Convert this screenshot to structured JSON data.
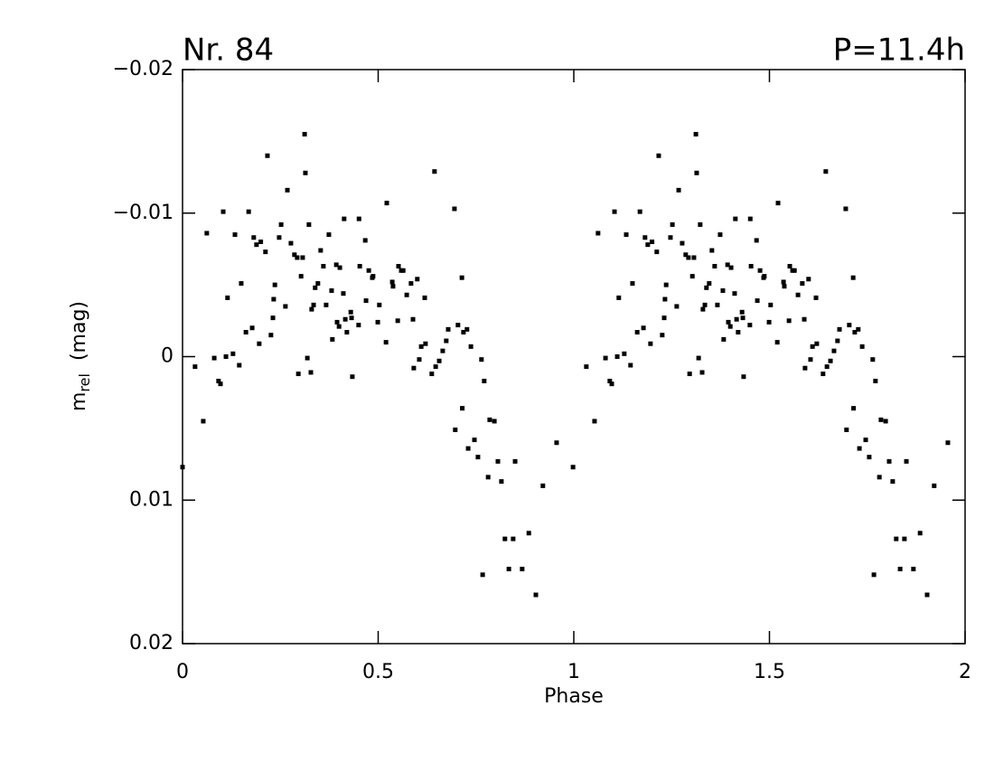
{
  "chart_data": {
    "type": "scatter",
    "title_left": "Nr.  84",
    "title_right": "P=11.4h",
    "xlabel": "Phase",
    "ylabel": {
      "text": "m",
      "subscript": "rel",
      "suffix": "(mag)"
    },
    "xlim": [
      0,
      2
    ],
    "xticks": [
      0,
      0.5,
      1,
      1.5,
      2
    ],
    "ylim": [
      -0.02,
      0.02
    ],
    "y_inverted": true,
    "yticks": [
      {
        "value": -0.02,
        "label": "−0.02"
      },
      {
        "value": -0.01,
        "label": "−0.01"
      },
      0,
      0.01,
      0.02
    ],
    "series": [
      {
        "name": "Nr. 84",
        "color": "#000000",
        "x": [
          0.0,
          0.032,
          0.053,
          0.062,
          0.081,
          0.092,
          0.097,
          0.104,
          0.111,
          0.115,
          0.129,
          0.134,
          0.145,
          0.15,
          0.162,
          0.169,
          0.178,
          0.182,
          0.189,
          0.196,
          0.2,
          0.212,
          0.217,
          0.226,
          0.231,
          0.233,
          0.236,
          0.247,
          0.252,
          0.263,
          0.268,
          0.277,
          0.286,
          0.293,
          0.296,
          0.303,
          0.307,
          0.312,
          0.314,
          0.319,
          0.323,
          0.328,
          0.33,
          0.335,
          0.339,
          0.346,
          0.353,
          0.36,
          0.367,
          0.374,
          0.381,
          0.383,
          0.393,
          0.395,
          0.4,
          0.402,
          0.411,
          0.413,
          0.416,
          0.42,
          0.43,
          0.432,
          0.434,
          0.45,
          0.451,
          0.453,
          0.467,
          0.469,
          0.476,
          0.485,
          0.487,
          0.499,
          0.503,
          0.52,
          0.522,
          0.536,
          0.538,
          0.55,
          0.552,
          0.559,
          0.564,
          0.573,
          0.584,
          0.589,
          0.591,
          0.6,
          0.605,
          0.61,
          0.619,
          0.621,
          0.637,
          0.644,
          0.647,
          0.656,
          0.665,
          0.674,
          0.679,
          0.695,
          0.697,
          0.704,
          0.714,
          0.715,
          0.718,
          0.727,
          0.73,
          0.737,
          0.746,
          0.755,
          0.764,
          0.767,
          0.771,
          0.781,
          0.785,
          0.797,
          0.806,
          0.815,
          0.824,
          0.834,
          0.845,
          0.85,
          0.868,
          0.885,
          0.903,
          0.921,
          0.956,
          0.998,
          1.032,
          1.053,
          1.062,
          1.081,
          1.092,
          1.097,
          1.104,
          1.111,
          1.115,
          1.129,
          1.134,
          1.145,
          1.15,
          1.162,
          1.169,
          1.178,
          1.182,
          1.189,
          1.196,
          1.2,
          1.212,
          1.217,
          1.226,
          1.231,
          1.233,
          1.236,
          1.247,
          1.252,
          1.263,
          1.268,
          1.277,
          1.286,
          1.293,
          1.296,
          1.303,
          1.307,
          1.312,
          1.314,
          1.319,
          1.323,
          1.328,
          1.33,
          1.335,
          1.339,
          1.346,
          1.353,
          1.36,
          1.367,
          1.374,
          1.381,
          1.383,
          1.393,
          1.395,
          1.4,
          1.402,
          1.411,
          1.413,
          1.416,
          1.42,
          1.43,
          1.432,
          1.434,
          1.45,
          1.451,
          1.453,
          1.467,
          1.469,
          1.476,
          1.485,
          1.487,
          1.499,
          1.503,
          1.52,
          1.522,
          1.536,
          1.538,
          1.55,
          1.552,
          1.559,
          1.564,
          1.573,
          1.584,
          1.589,
          1.591,
          1.6,
          1.605,
          1.61,
          1.619,
          1.621,
          1.637,
          1.644,
          1.647,
          1.656,
          1.665,
          1.674,
          1.679,
          1.695,
          1.697,
          1.704,
          1.714,
          1.715,
          1.718,
          1.727,
          1.73,
          1.737,
          1.746,
          1.755,
          1.764,
          1.767,
          1.771,
          1.781,
          1.785,
          1.797,
          1.806,
          1.815,
          1.824,
          1.834,
          1.845,
          1.85,
          1.868,
          1.885,
          1.903,
          1.921,
          1.956
        ],
        "values": [
          0.0077,
          0.0007,
          0.0045,
          -0.0086,
          0.0001,
          0.0017,
          0.0019,
          -0.0101,
          0,
          -0.0041,
          -0.0002,
          -0.0085,
          0.0006,
          -0.0051,
          -0.0017,
          -0.0101,
          -0.002,
          -0.0083,
          -0.0078,
          -0.0009,
          -0.008,
          -0.0073,
          -0.014,
          -0.0015,
          -0.0027,
          -0.004,
          -0.005,
          -0.0083,
          -0.0092,
          -0.0035,
          -0.0116,
          -0.0079,
          -0.0071,
          -0.0069,
          0.0012,
          -0.0056,
          -0.0069,
          -0.0155,
          -0.0128,
          0.0001,
          -0.0092,
          0.0011,
          -0.0033,
          -0.0036,
          -0.0048,
          -0.0051,
          -0.0074,
          -0.0063,
          -0.0036,
          -0.0085,
          -0.0046,
          -0.0012,
          -0.0064,
          -0.0024,
          -0.0021,
          -0.0062,
          -0.0044,
          -0.0096,
          -0.0026,
          -0.0017,
          -0.0031,
          -0.0027,
          0.0014,
          -0.0022,
          -0.0096,
          -0.0063,
          -0.0081,
          -0.0039,
          -0.006,
          -0.0055,
          -0.0056,
          -0.0024,
          -0.0036,
          -0.001,
          -0.0107,
          -0.0052,
          -0.0049,
          -0.0025,
          -0.0063,
          -0.006,
          -0.006,
          -0.0043,
          -0.0051,
          -0.0026,
          0.0008,
          -0.0054,
          0.0002,
          -0.0007,
          -0.0041,
          -0.0009,
          0.0012,
          -0.0129,
          0.0007,
          0.0003,
          -0.0004,
          -0.0011,
          -0.0019,
          -0.0103,
          0.0051,
          -0.0022,
          -0.0055,
          0.0036,
          -0.0017,
          -0.0019,
          0.0064,
          -0.0007,
          0.0058,
          0.007,
          0.0002,
          0.0152,
          0.0017,
          0.0084,
          0.0044,
          0.0045,
          0.0073,
          0.0087,
          0.0127,
          0.0148,
          0.0127,
          0.0073,
          0.0148,
          0.0123,
          0.0166,
          0.009,
          0.006,
          0.0077,
          0.0007,
          0.0045,
          -0.0086,
          0.0001,
          0.0017,
          0.0019,
          -0.0101,
          0,
          -0.0041,
          -0.0002,
          -0.0085,
          0.0006,
          -0.0051,
          -0.0017,
          -0.0101,
          -0.002,
          -0.0083,
          -0.0078,
          -0.0009,
          -0.008,
          -0.0073,
          -0.014,
          -0.0015,
          -0.0027,
          -0.004,
          -0.005,
          -0.0083,
          -0.0092,
          -0.0035,
          -0.0116,
          -0.0079,
          -0.0071,
          -0.0069,
          0.0012,
          -0.0056,
          -0.0069,
          -0.0155,
          -0.0128,
          0.0001,
          -0.0092,
          0.0011,
          -0.0033,
          -0.0036,
          -0.0048,
          -0.0051,
          -0.0074,
          -0.0063,
          -0.0036,
          -0.0085,
          -0.0046,
          -0.0012,
          -0.0064,
          -0.0024,
          -0.0021,
          -0.0062,
          -0.0044,
          -0.0096,
          -0.0026,
          -0.0017,
          -0.0031,
          -0.0027,
          0.0014,
          -0.0022,
          -0.0096,
          -0.0063,
          -0.0081,
          -0.0039,
          -0.006,
          -0.0055,
          -0.0056,
          -0.0024,
          -0.0036,
          -0.001,
          -0.0107,
          -0.0052,
          -0.0049,
          -0.0025,
          -0.0063,
          -0.006,
          -0.006,
          -0.0043,
          -0.0051,
          -0.0026,
          0.0008,
          -0.0054,
          0.0002,
          -0.0007,
          -0.0041,
          -0.0009,
          0.0012,
          -0.0129,
          0.0007,
          0.0003,
          -0.0004,
          -0.0011,
          -0.0019,
          -0.0103,
          0.0051,
          -0.0022,
          -0.0055,
          0.0036,
          -0.0017,
          -0.0019,
          0.0064,
          -0.0007,
          0.0058,
          0.007,
          0.0002,
          0.0152,
          0.0017,
          0.0084,
          0.0044,
          0.0045,
          0.0073,
          0.0087,
          0.0127,
          0.0148,
          0.0127,
          0.0073,
          0.0148,
          0.0123,
          0.0166,
          0.009,
          0.006
        ]
      }
    ]
  }
}
